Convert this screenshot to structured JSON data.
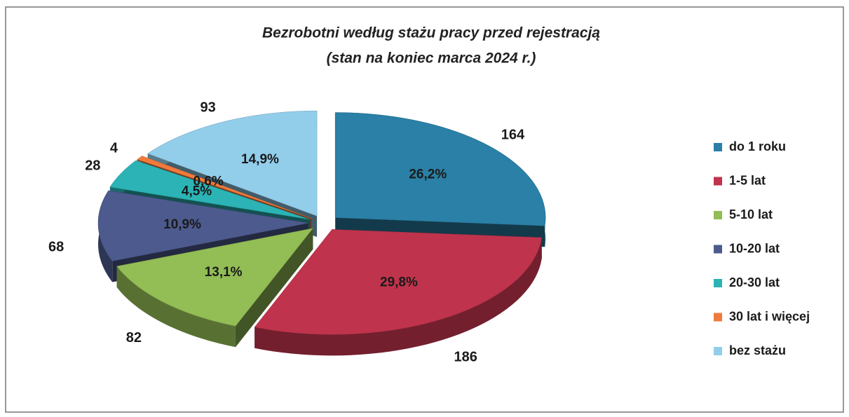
{
  "chart_data": {
    "type": "pie",
    "title": "Bezrobotni według stażu pracy przed rejestracją",
    "subtitle": "(stan na koniec marca 2024 r.)",
    "categories": [
      "do 1 roku",
      "1-5 lat",
      "5-10 lat",
      "10-20 lat",
      "20-30 lat",
      "30 lat i więcej",
      "bez stażu"
    ],
    "values": [
      164,
      186,
      82,
      68,
      28,
      4,
      93
    ],
    "percents": [
      26.2,
      29.8,
      13.1,
      10.9,
      4.5,
      0.6,
      14.9
    ],
    "percent_labels": [
      "26,2%",
      "29,8%",
      "13,1%",
      "10,9%",
      "4,5%",
      "0,6%",
      "14,9%"
    ],
    "colors": [
      "#2a80a6",
      "#c0334c",
      "#93bd55",
      "#4d5a8e",
      "#2bb3b5",
      "#f07a3c",
      "#92cdea"
    ],
    "legend": "right"
  }
}
